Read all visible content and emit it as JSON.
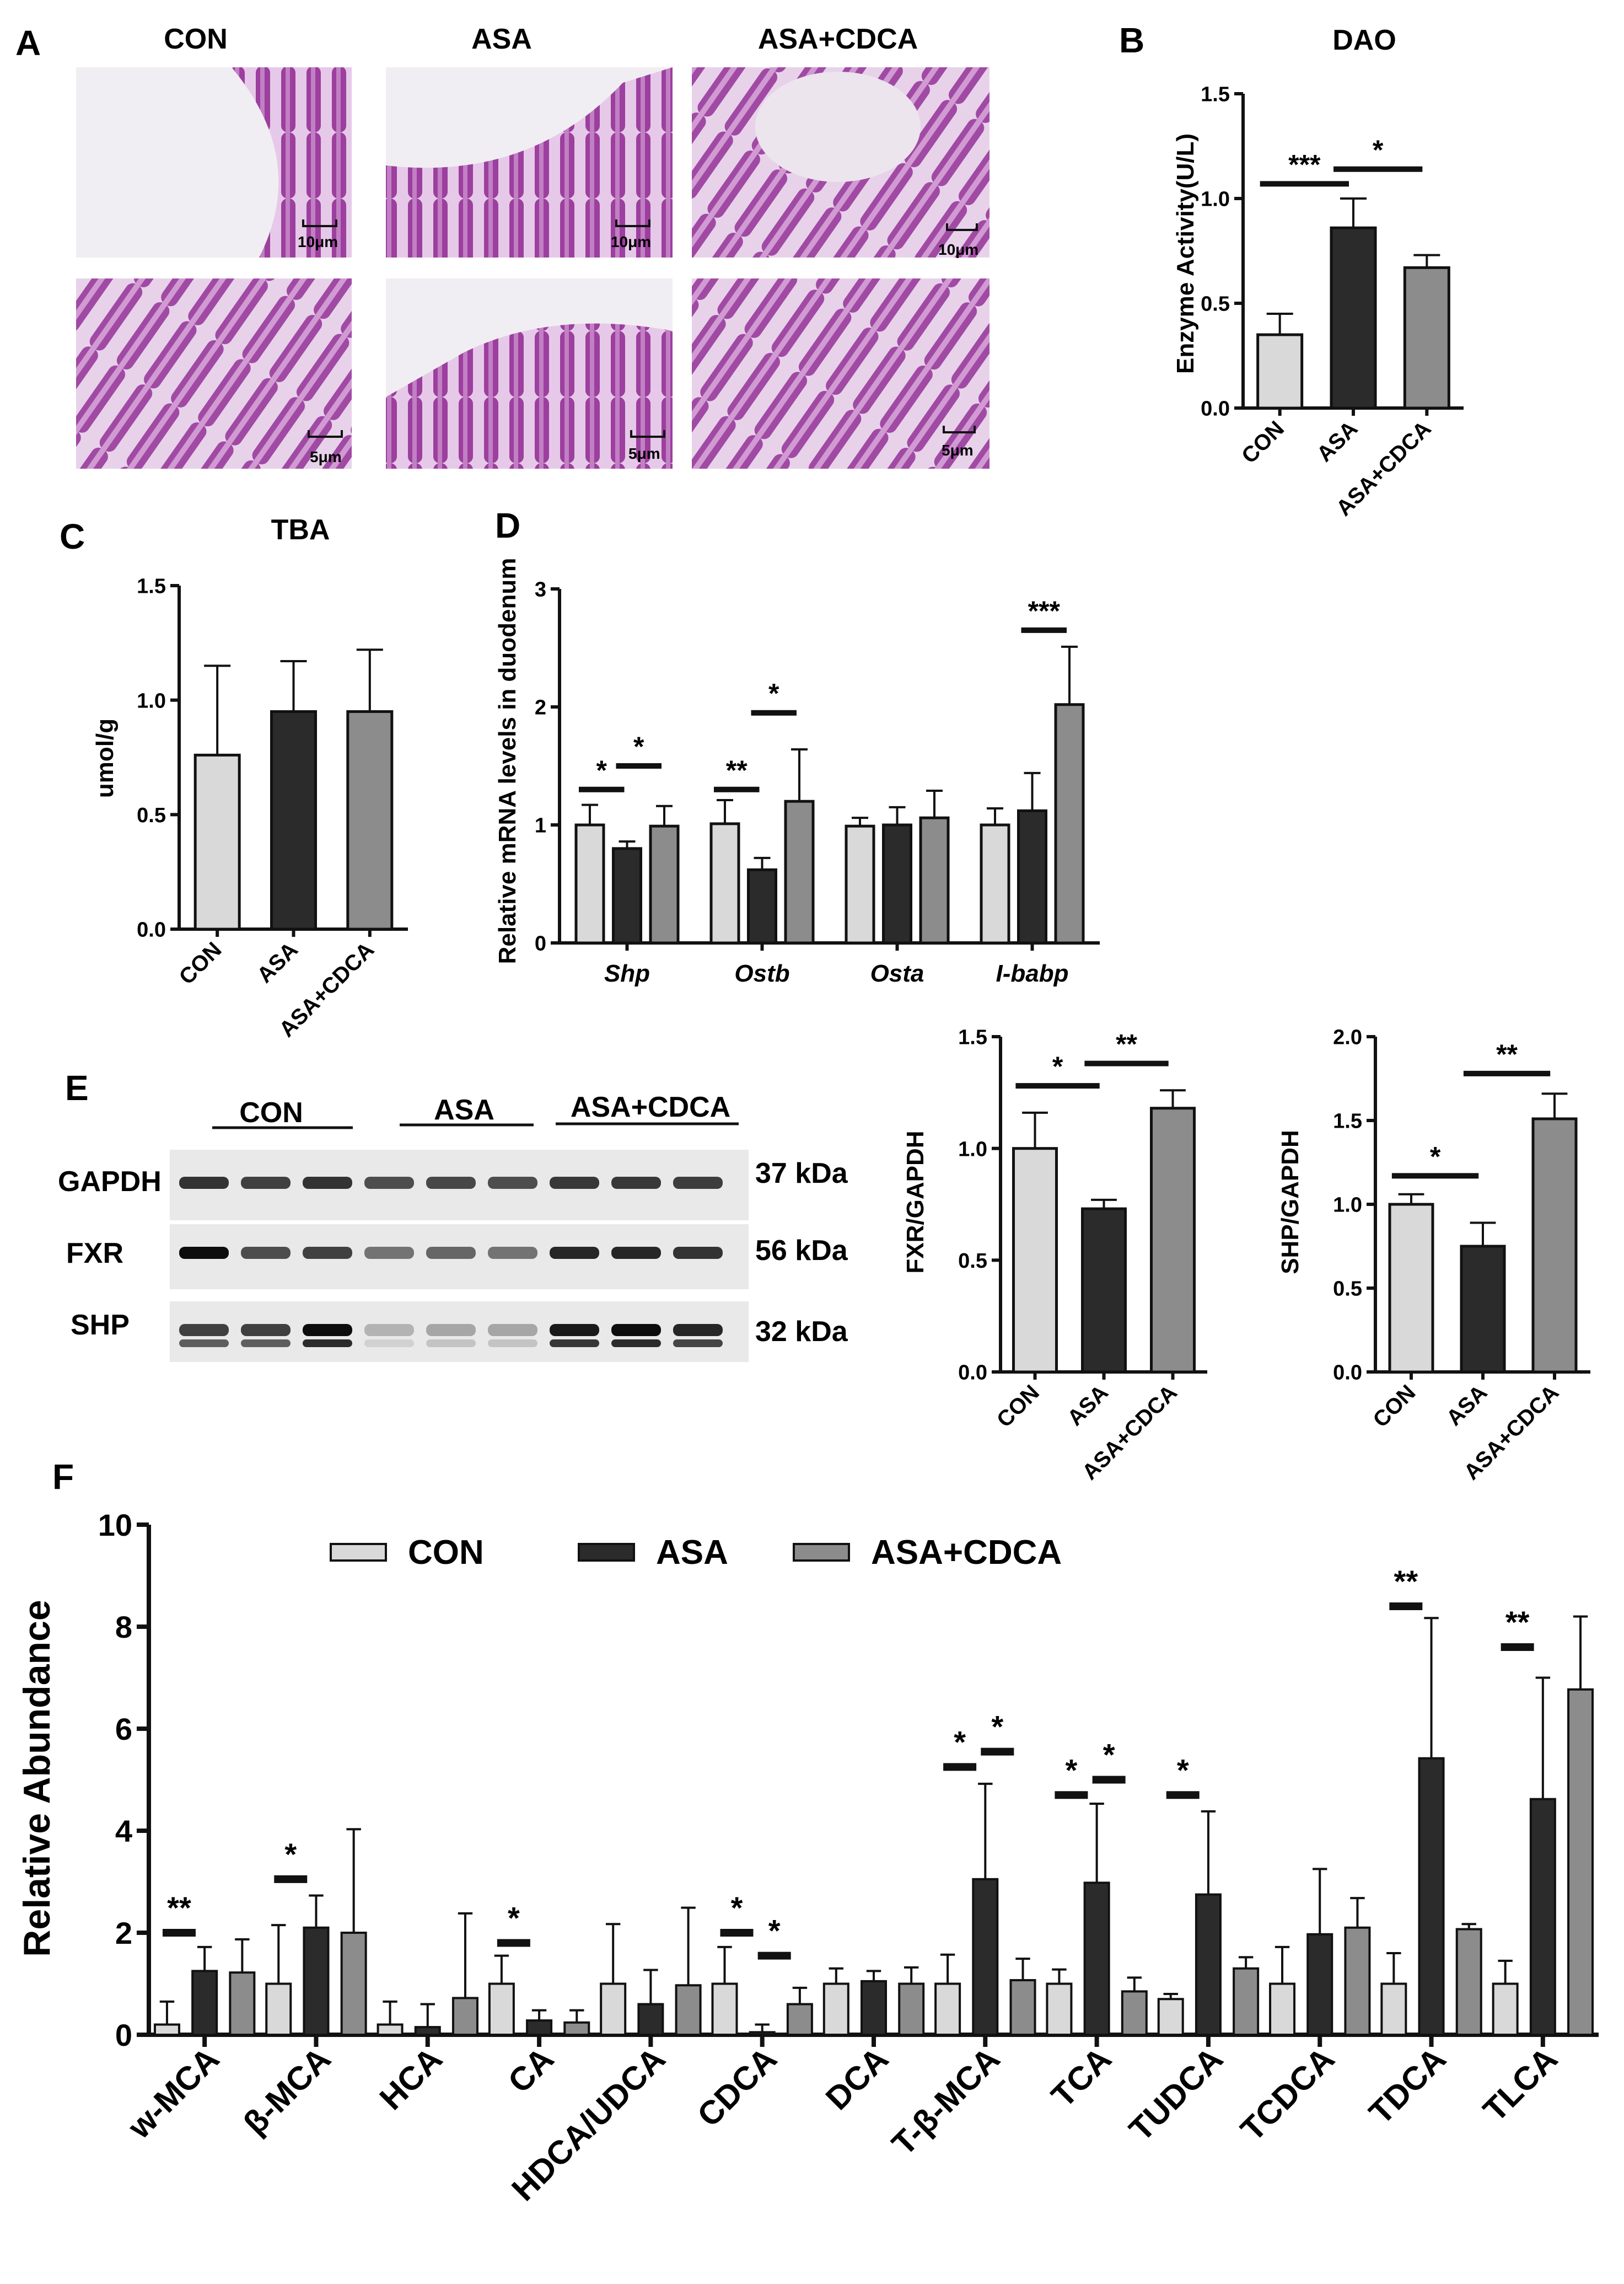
{
  "panels": {
    "A": {
      "label": "A",
      "columns": [
        "CON",
        "ASA",
        "ASA+CDCA"
      ],
      "scale_top": "10μm",
      "scale_bottom": "5μm"
    },
    "E": {
      "label": "E",
      "groups": [
        "CON",
        "ASA",
        "ASA+CDCA"
      ],
      "bands": [
        {
          "name": "GAPDH",
          "size": "37 kDa"
        },
        {
          "name": "FXR",
          "size": "56 kDa"
        },
        {
          "name": "SHP",
          "size": "32 kDa"
        }
      ]
    }
  },
  "colors": {
    "con": "#d9d9d9",
    "asa": "#2b2b2b",
    "cdca": "#8c8c8c",
    "tissue": "#9c3f9e",
    "lumen": "#f1eef3"
  },
  "chart_data": [
    {
      "id": "B",
      "label": "B",
      "type": "bar",
      "title": "DAO",
      "ylabel": "Enzyme Activity(U/L)",
      "ylim": [
        0,
        1.5
      ],
      "yticks": [
        "0.0",
        "0.5",
        "1.0",
        "1.5"
      ],
      "categories": [
        "CON",
        "ASA",
        "ASA+CDCA"
      ],
      "values": [
        0.35,
        0.86,
        0.67
      ],
      "errors": [
        0.1,
        0.14,
        0.06
      ],
      "sig": [
        {
          "text": "***",
          "from": 0,
          "to": 1,
          "y": 1.07
        },
        {
          "text": "*",
          "from": 1,
          "to": 2,
          "y": 1.14
        }
      ]
    },
    {
      "id": "C",
      "label": "C",
      "type": "bar",
      "title": "TBA",
      "ylabel": "umol/g",
      "ylim": [
        0,
        1.5
      ],
      "yticks": [
        "0.0",
        "0.5",
        "1.0",
        "1.5"
      ],
      "categories": [
        "CON",
        "ASA",
        "ASA+CDCA"
      ],
      "values": [
        0.76,
        0.95,
        0.95
      ],
      "errors": [
        0.39,
        0.22,
        0.27
      ],
      "sig": []
    },
    {
      "id": "D",
      "label": "D",
      "type": "bar",
      "ylabel": "Relative mRNA levels in duodenum",
      "ylim": [
        0,
        3
      ],
      "yticks": [
        "0",
        "1",
        "2",
        "3"
      ],
      "categories": [
        "Shp",
        "Ostb",
        "Osta",
        "I-babp"
      ],
      "series": [
        {
          "values": [
            1.0,
            1.01,
            0.99,
            1.0
          ],
          "errors": [
            0.17,
            0.2,
            0.07,
            0.14
          ]
        },
        {
          "values": [
            0.8,
            0.62,
            1.0,
            1.12
          ],
          "errors": [
            0.06,
            0.1,
            0.15,
            0.32
          ]
        },
        {
          "values": [
            0.99,
            1.2,
            1.06,
            2.02
          ],
          "errors": [
            0.17,
            0.44,
            0.23,
            0.49
          ]
        }
      ],
      "sig": [
        {
          "text": "*",
          "group": 0,
          "from": 0,
          "to": 1,
          "y": 1.3
        },
        {
          "text": "*",
          "group": 0,
          "from": 1,
          "to": 2,
          "y": 1.5
        },
        {
          "text": "**",
          "group": 1,
          "from": 0,
          "to": 1,
          "y": 1.3
        },
        {
          "text": "*",
          "group": 1,
          "from": 1,
          "to": 2,
          "y": 1.95
        },
        {
          "text": "***",
          "group": 3,
          "from": 1,
          "to": 2,
          "y": 2.65
        }
      ]
    },
    {
      "id": "E1",
      "type": "bar",
      "ylabel": "FXR/GAPDH",
      "ylim": [
        0,
        1.5
      ],
      "yticks": [
        "0.0",
        "0.5",
        "1.0",
        "1.5"
      ],
      "categories": [
        "CON",
        "ASA",
        "ASA+CDCA"
      ],
      "values": [
        1.0,
        0.73,
        1.18
      ],
      "errors": [
        0.16,
        0.04,
        0.08
      ],
      "sig": [
        {
          "text": "*",
          "from": 0,
          "to": 1,
          "y": 1.28
        },
        {
          "text": "**",
          "from": 1,
          "to": 2,
          "y": 1.38
        }
      ]
    },
    {
      "id": "E2",
      "type": "bar",
      "ylabel": "SHP/GAPDH",
      "ylim": [
        0,
        2.0
      ],
      "yticks": [
        "0.0",
        "0.5",
        "1.0",
        "1.5",
        "2.0"
      ],
      "categories": [
        "CON",
        "ASA",
        "ASA+CDCA"
      ],
      "values": [
        1.0,
        0.75,
        1.51
      ],
      "errors": [
        0.06,
        0.14,
        0.15
      ],
      "sig": [
        {
          "text": "*",
          "from": 0,
          "to": 1,
          "y": 1.17
        },
        {
          "text": "**",
          "from": 1,
          "to": 2,
          "y": 1.78
        }
      ]
    },
    {
      "id": "F",
      "label": "F",
      "type": "bar",
      "ylabel": "Relative Abundance",
      "ylim": [
        0,
        10
      ],
      "yticks": [
        "0",
        "2",
        "4",
        "6",
        "8",
        "10"
      ],
      "legend": [
        "CON",
        "ASA",
        "ASA+CDCA"
      ],
      "legend_position": "top",
      "categories": [
        "w-MCA",
        "β-MCA",
        "HCA",
        "CA",
        "HDCA/UDCA",
        "CDCA",
        "DCA",
        "T-β-MCA",
        "TCA",
        "TUDCA",
        "TCDCA",
        "TDCA",
        "TLCA"
      ],
      "series": [
        {
          "name": "CON",
          "values": [
            0.2,
            1.0,
            0.2,
            1.0,
            1.0,
            1.0,
            1.0,
            1.0,
            1.0,
            0.7,
            1.0,
            1.0,
            1.0
          ],
          "errors": [
            0.45,
            1.15,
            0.45,
            0.55,
            1.17,
            0.72,
            0.3,
            0.57,
            0.28,
            0.1,
            0.72,
            0.6,
            0.45
          ]
        },
        {
          "name": "ASA",
          "values": [
            1.25,
            2.1,
            0.15,
            0.28,
            0.6,
            0.05,
            1.05,
            3.05,
            2.98,
            2.75,
            1.97,
            5.42,
            4.62
          ],
          "errors": [
            0.47,
            0.63,
            0.45,
            0.2,
            0.67,
            0.15,
            0.2,
            1.87,
            1.55,
            1.63,
            1.28,
            2.75,
            2.38
          ]
        },
        {
          "name": "ASA+CDCA",
          "values": [
            1.22,
            2.0,
            0.72,
            0.24,
            0.97,
            0.6,
            1.0,
            1.07,
            0.85,
            1.3,
            2.1,
            2.07,
            6.77
          ],
          "errors": [
            0.65,
            2.03,
            1.66,
            0.24,
            1.52,
            0.32,
            0.32,
            0.42,
            0.27,
            0.22,
            0.58,
            0.1,
            1.43
          ]
        }
      ],
      "sig": [
        {
          "text": "**",
          "group": 0,
          "side": "left",
          "y": 2.0
        },
        {
          "text": "*",
          "group": 1,
          "side": "left",
          "y": 3.05
        },
        {
          "text": "*",
          "group": 3,
          "side": "left",
          "y": 1.8
        },
        {
          "text": "*",
          "group": 5,
          "side": "left",
          "y": 2.0
        },
        {
          "text": "*",
          "group": 5,
          "side": "right",
          "y": 1.55
        },
        {
          "text": "*",
          "group": 7,
          "side": "left",
          "y": 5.25
        },
        {
          "text": "*",
          "group": 7,
          "side": "right",
          "y": 5.55
        },
        {
          "text": "*",
          "group": 8,
          "side": "left",
          "y": 4.7
        },
        {
          "text": "*",
          "group": 8,
          "side": "right",
          "y": 5.0
        },
        {
          "text": "*",
          "group": 9,
          "side": "left",
          "y": 4.7
        },
        {
          "text": "**",
          "group": 11,
          "side": "left",
          "y": 8.4
        },
        {
          "text": "**",
          "group": 12,
          "side": "left",
          "y": 7.6
        }
      ]
    }
  ]
}
